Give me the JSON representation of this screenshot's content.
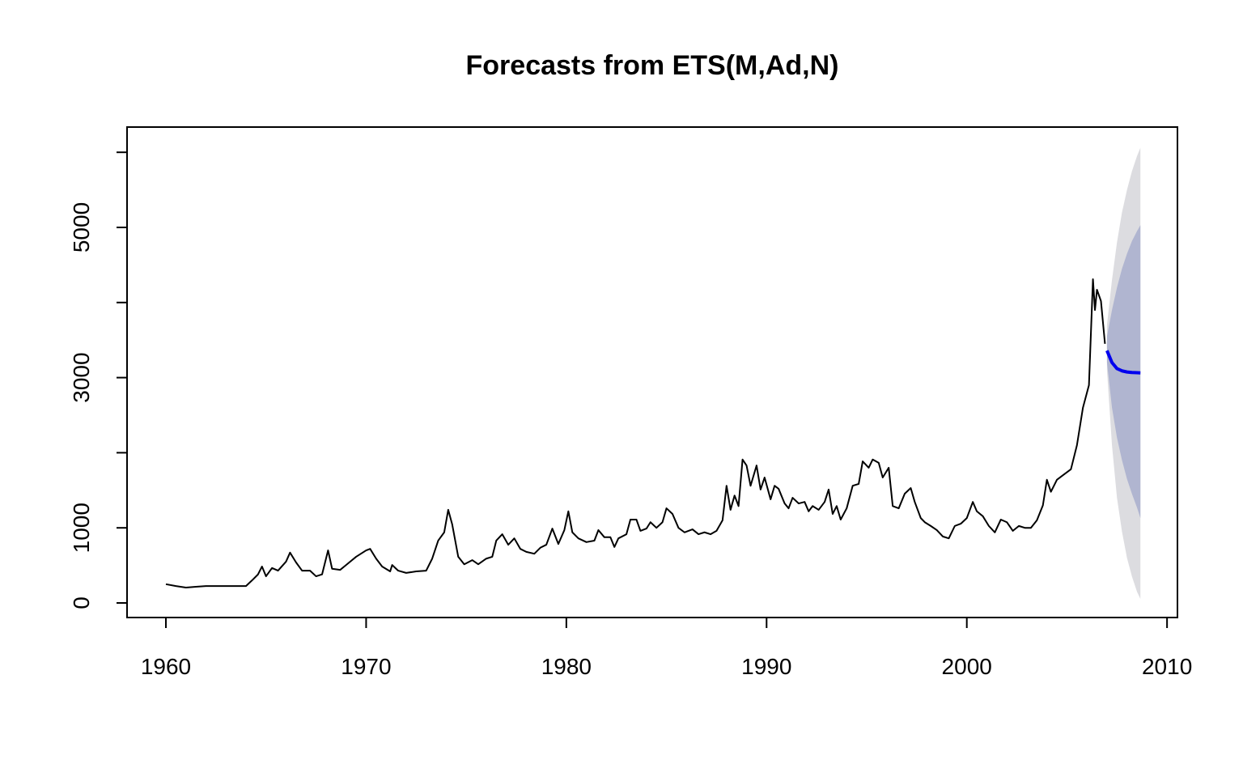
{
  "chart_data": {
    "type": "forecast",
    "title": "Forecasts from ETS(M,Ad,N)",
    "x": [
      1960.0,
      1960.5,
      1961.0,
      1961.5,
      1962.0,
      1963.0,
      1964.0,
      1964.3,
      1964.6,
      1964.8,
      1965.0,
      1965.3,
      1965.6,
      1966.0,
      1966.2,
      1966.5,
      1966.8,
      1967.2,
      1967.5,
      1967.8,
      1968.1,
      1968.3,
      1968.7,
      1969.0,
      1969.5,
      1970.0,
      1970.2,
      1970.5,
      1970.8,
      1971.2,
      1971.3,
      1971.6,
      1972.0,
      1972.5,
      1973.0,
      1973.3,
      1973.6,
      1973.9,
      1974.1,
      1974.3,
      1974.6,
      1974.9,
      1975.3,
      1975.6,
      1976.0,
      1976.3,
      1976.5,
      1976.8,
      1977.1,
      1977.4,
      1977.7,
      1978.0,
      1978.4,
      1978.7,
      1979.0,
      1979.3,
      1979.6,
      1979.9,
      1980.1,
      1980.3,
      1980.6,
      1981.0,
      1981.4,
      1981.6,
      1981.9,
      1982.2,
      1982.4,
      1982.6,
      1983.0,
      1983.2,
      1983.5,
      1983.7,
      1984.0,
      1984.2,
      1984.5,
      1984.8,
      1985.0,
      1985.3,
      1985.6,
      1985.9,
      1986.3,
      1986.6,
      1986.9,
      1987.2,
      1987.5,
      1987.8,
      1988.0,
      1988.2,
      1988.4,
      1988.6,
      1988.8,
      1989.0,
      1989.2,
      1989.5,
      1989.7,
      1989.9,
      1990.2,
      1990.4,
      1990.6,
      1990.9,
      1991.1,
      1991.3,
      1991.6,
      1991.9,
      1992.1,
      1992.3,
      1992.6,
      1992.9,
      1993.1,
      1993.3,
      1993.5,
      1993.7,
      1994.0,
      1994.3,
      1994.6,
      1994.8,
      1995.1,
      1995.3,
      1995.6,
      1995.8,
      1996.1,
      1996.3,
      1996.6,
      1996.9,
      1997.2,
      1997.4,
      1997.7,
      1997.9,
      1998.2,
      1998.5,
      1998.8,
      1999.1,
      1999.4,
      1999.7,
      2000.0,
      2000.3,
      2000.5,
      2000.8,
      2001.1,
      2001.4,
      2001.7,
      2002.0,
      2002.3,
      2002.6,
      2002.9,
      2003.2,
      2003.5,
      2003.8,
      2004.0,
      2004.2,
      2004.5,
      2004.8,
      2005.2,
      2005.5,
      2005.8,
      2006.1,
      2006.3,
      2006.4,
      2006.5,
      2006.7,
      2006.9
    ],
    "values": [
      250,
      225,
      205,
      215,
      225,
      225,
      225,
      300,
      380,
      485,
      355,
      465,
      430,
      550,
      670,
      540,
      430,
      430,
      355,
      380,
      700,
      455,
      440,
      505,
      615,
      700,
      720,
      590,
      485,
      420,
      505,
      430,
      400,
      420,
      430,
      590,
      830,
      940,
      1240,
      1045,
      615,
      515,
      570,
      515,
      590,
      615,
      830,
      915,
      775,
      860,
      720,
      680,
      655,
      735,
      775,
      990,
      785,
      970,
      1220,
      940,
      860,
      810,
      830,
      970,
      875,
      875,
      745,
      860,
      915,
      1110,
      1110,
      960,
      990,
      1075,
      1000,
      1075,
      1260,
      1185,
      1000,
      940,
      980,
      915,
      940,
      915,
      960,
      1100,
      1560,
      1240,
      1430,
      1290,
      1910,
      1830,
      1560,
      1830,
      1510,
      1670,
      1380,
      1560,
      1520,
      1325,
      1260,
      1400,
      1325,
      1345,
      1220,
      1290,
      1240,
      1345,
      1510,
      1185,
      1290,
      1110,
      1260,
      1560,
      1585,
      1885,
      1800,
      1910,
      1865,
      1670,
      1800,
      1290,
      1260,
      1455,
      1530,
      1345,
      1130,
      1075,
      1025,
      970,
      885,
      860,
      1025,
      1055,
      1130,
      1345,
      1220,
      1155,
      1025,
      940,
      1110,
      1075,
      960,
      1025,
      1000,
      1000,
      1100,
      1300,
      1640,
      1480,
      1640,
      1700,
      1780,
      2100,
      2600,
      2900,
      4310,
      3900,
      4170,
      4020,
      3450
    ],
    "color": "#000000",
    "forecast": {
      "x": [
        2007.0,
        2007.25,
        2007.5,
        2007.75,
        2008.0,
        2008.25,
        2008.5,
        2008.67
      ],
      "mean": [
        3360,
        3200,
        3120,
        3090,
        3075,
        3068,
        3065,
        3063
      ],
      "lo80": [
        3200,
        2600,
        2200,
        1900,
        1650,
        1450,
        1270,
        1130
      ],
      "hi80": [
        3550,
        3900,
        4200,
        4450,
        4650,
        4820,
        4950,
        5030
      ],
      "lo95": [
        3100,
        2100,
        1400,
        950,
        600,
        350,
        150,
        54
      ],
      "hi95": [
        3700,
        4300,
        4800,
        5200,
        5500,
        5750,
        5950,
        6060
      ],
      "color": "#0000ee",
      "color80": "#b0b5d0",
      "color95": "#dcdce0"
    },
    "xlim": [
      1958.06,
      2010.52
    ],
    "ylim": [
      -194,
      6336
    ],
    "xticks": [
      1960,
      1970,
      1980,
      1990,
      2000,
      2010
    ],
    "yticks": [
      0,
      1000,
      3000,
      5000
    ],
    "yticks_unlabeled": [
      2000,
      4000,
      6000
    ]
  }
}
